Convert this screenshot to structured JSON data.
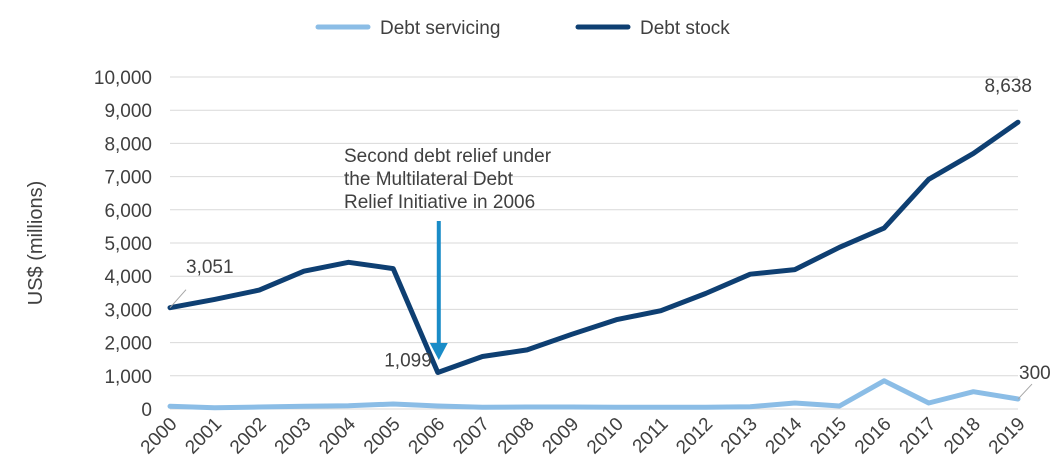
{
  "chart_data": {
    "type": "line",
    "categories": [
      "2000",
      "2001",
      "2002",
      "2003",
      "2004",
      "2005",
      "2006",
      "2007",
      "2008",
      "2009",
      "2010",
      "2011",
      "2012",
      "2013",
      "2014",
      "2015",
      "2016",
      "2017",
      "2018",
      "2019"
    ],
    "series": [
      {
        "name": "Debt servicing",
        "color": "#8bbde6",
        "values": [
          80,
          40,
          60,
          80,
          100,
          150,
          90,
          50,
          60,
          60,
          50,
          50,
          50,
          70,
          180,
          90,
          850,
          180,
          520,
          300
        ]
      },
      {
        "name": "Debt stock",
        "color": "#0e3f72",
        "values": [
          3051,
          3300,
          3580,
          4150,
          4420,
          4230,
          1099,
          1580,
          1780,
          2250,
          2690,
          2960,
          3480,
          4060,
          4200,
          4870,
          5450,
          6920,
          7700,
          8638
        ]
      }
    ],
    "ylim": [
      0,
      10000
    ],
    "yticks": [
      "0",
      "1,000",
      "2,000",
      "3,000",
      "4,000",
      "5,000",
      "6,000",
      "7,000",
      "8,000",
      "9,000",
      "10,000"
    ],
    "ylabel": "US$ (millions)",
    "xlabel": "",
    "title": "",
    "grid": true,
    "legend_position": "top-center",
    "data_labels": [
      {
        "series": 1,
        "index": 0,
        "text": "3,051"
      },
      {
        "series": 1,
        "index": 6,
        "text": "1,099"
      },
      {
        "series": 1,
        "index": 19,
        "text": "8,638"
      },
      {
        "series": 0,
        "index": 19,
        "text": "300"
      }
    ],
    "annotation": {
      "lines": [
        "Second debt relief under",
        "the Multilateral Debt",
        "Relief Initiative in 2006"
      ],
      "target_index": 6,
      "arrow_color": "#1a8cc7"
    }
  }
}
